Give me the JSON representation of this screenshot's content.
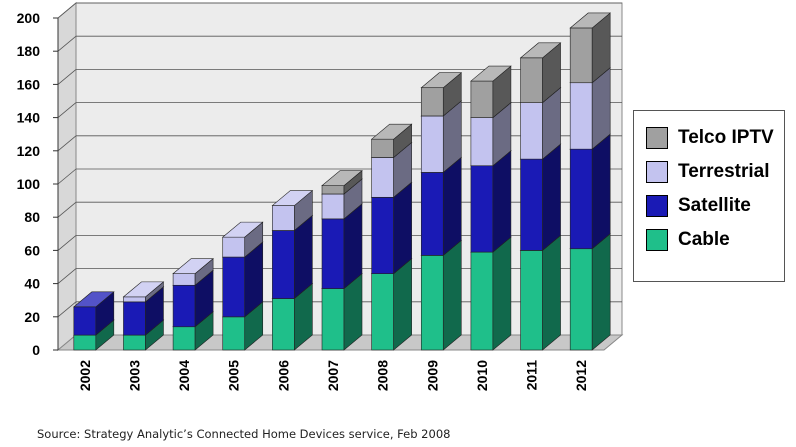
{
  "chart_data": {
    "type": "bar",
    "stacked": true,
    "style": "3d",
    "categories": [
      "2002",
      "2003",
      "2004",
      "2005",
      "2006",
      "2007",
      "2008",
      "2009",
      "2010",
      "2011",
      "2012"
    ],
    "series": [
      {
        "name": "Cable",
        "color": "#1fbf8a",
        "values": [
          9,
          9,
          14,
          20,
          31,
          37,
          46,
          57,
          59,
          60,
          61
        ]
      },
      {
        "name": "Satellite",
        "color": "#1a1ab5",
        "values": [
          17,
          20,
          25,
          36,
          41,
          42,
          46,
          50,
          52,
          55,
          60
        ]
      },
      {
        "name": "Terrestrial",
        "color": "#c3c3ef",
        "values": [
          0,
          3,
          7,
          12,
          15,
          15,
          24,
          34,
          29,
          34,
          40
        ]
      },
      {
        "name": "Telco IPTV",
        "color": "#a0a0a0",
        "values": [
          0,
          0,
          0,
          0,
          0,
          5,
          11,
          17,
          22,
          27,
          33
        ]
      }
    ],
    "y_ticks": [
      "0",
      "20",
      "40",
      "60",
      "80",
      "100",
      "120",
      "140",
      "160",
      "180",
      "200"
    ],
    "ylim": [
      0,
      200
    ],
    "grid": true,
    "legend_position": "right",
    "legend_order": [
      "Telco IPTV",
      "Terrestrial",
      "Satellite",
      "Cable"
    ],
    "source": "Source: Strategy Analytic’s Connected Home Devices service, Feb 2008"
  }
}
